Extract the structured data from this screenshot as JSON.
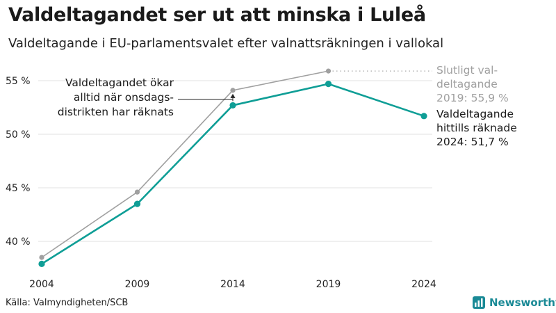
{
  "chart_data": {
    "type": "line",
    "title": "Valdeltagandet ser ut att minska i Luleå",
    "subtitle": "Valdeltagande i EU-parlamentsvalet efter valnattsräkningen i vallokal",
    "source": "Källa: Valmyndigheten/SCB",
    "brand": "Newsworthy",
    "categories": [
      "2004",
      "2009",
      "2014",
      "2019",
      "2024"
    ],
    "x": [
      2004,
      2009,
      2014,
      2019,
      2024
    ],
    "ylim": [
      37,
      57
    ],
    "y_ticks": [
      40,
      45,
      50,
      55
    ],
    "y_tick_labels": [
      "40 %",
      "45 %",
      "50 %",
      "55 %"
    ],
    "grid": true,
    "series": [
      {
        "id": "final",
        "color": "#a0a0a0",
        "values": [
          38.5,
          44.6,
          54.1,
          55.9,
          null
        ],
        "label_lines": [
          "Slutligt val-",
          "deltagande",
          "2019: 55,9 %"
        ]
      },
      {
        "id": "counted",
        "color": "#0f9e96",
        "values": [
          37.9,
          43.5,
          52.7,
          54.7,
          51.7
        ],
        "label_lines": [
          "Valdeltagande",
          "hittills räknade",
          "2024: 51,7 %"
        ]
      }
    ],
    "annotation_lines": [
      "Valdeltagandet ökar",
      "alltid när onsdags-",
      "distrikten har räknats"
    ]
  }
}
